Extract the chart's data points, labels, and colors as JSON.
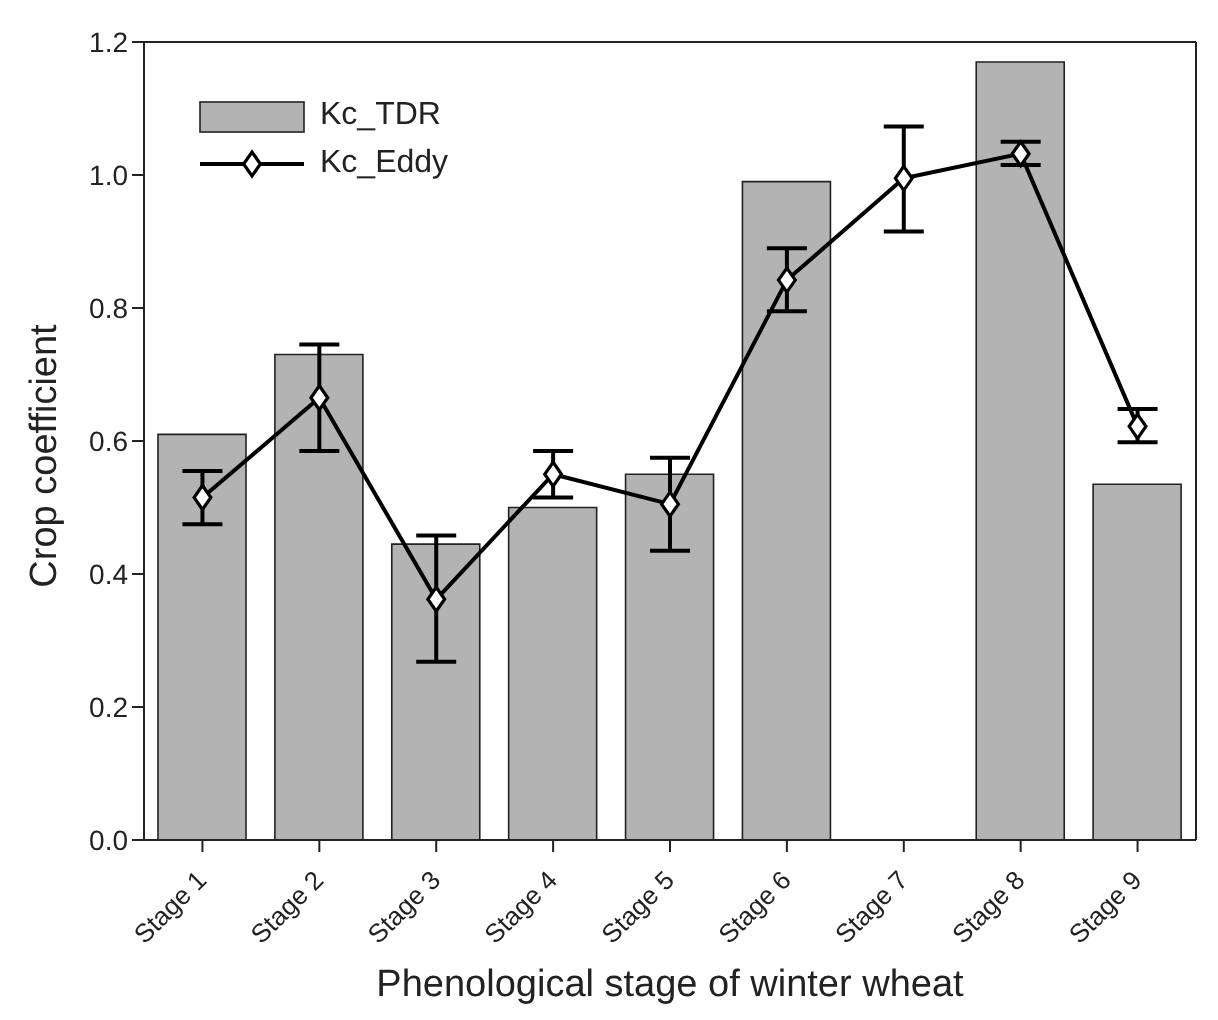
{
  "chart_data": {
    "type": "bar",
    "xlabel": "Phenological stage of winter wheat",
    "ylabel": "Crop coefficient",
    "categories": [
      "Stage 1",
      "Stage 2",
      "Stage 3",
      "Stage 4",
      "Stage 5",
      "Stage 6",
      "Stage 7",
      "Stage 8",
      "Stage 9"
    ],
    "series": [
      {
        "name": "Kc_TDR",
        "color": "#b3b3b3",
        "values": [
          0.61,
          0.73,
          0.445,
          0.5,
          0.55,
          0.99,
          null,
          1.17,
          0.535
        ]
      },
      {
        "name": "Kc_Eddy",
        "type": "line",
        "color": "#000000",
        "marker": "diamond",
        "values": [
          0.515,
          0.665,
          0.362,
          0.55,
          0.505,
          0.842,
          0.995,
          1.032,
          0.622
        ],
        "errors": [
          [
            0.475,
            0.555
          ],
          [
            0.585,
            0.745
          ],
          [
            0.268,
            0.458
          ],
          [
            0.515,
            0.585
          ],
          [
            0.435,
            0.575
          ],
          [
            0.795,
            0.89
          ],
          [
            0.915,
            1.073
          ],
          [
            1.015,
            1.05
          ],
          [
            0.598,
            0.648
          ]
        ]
      }
    ],
    "ylim": [
      0,
      1.2
    ],
    "yticks": [
      {
        "value": 0,
        "label": "0.0"
      },
      0.2,
      0.4,
      0.6,
      0.8,
      {
        "value": 1,
        "label": "1.0"
      },
      1.2
    ],
    "grid": false,
    "legend": "top left"
  }
}
